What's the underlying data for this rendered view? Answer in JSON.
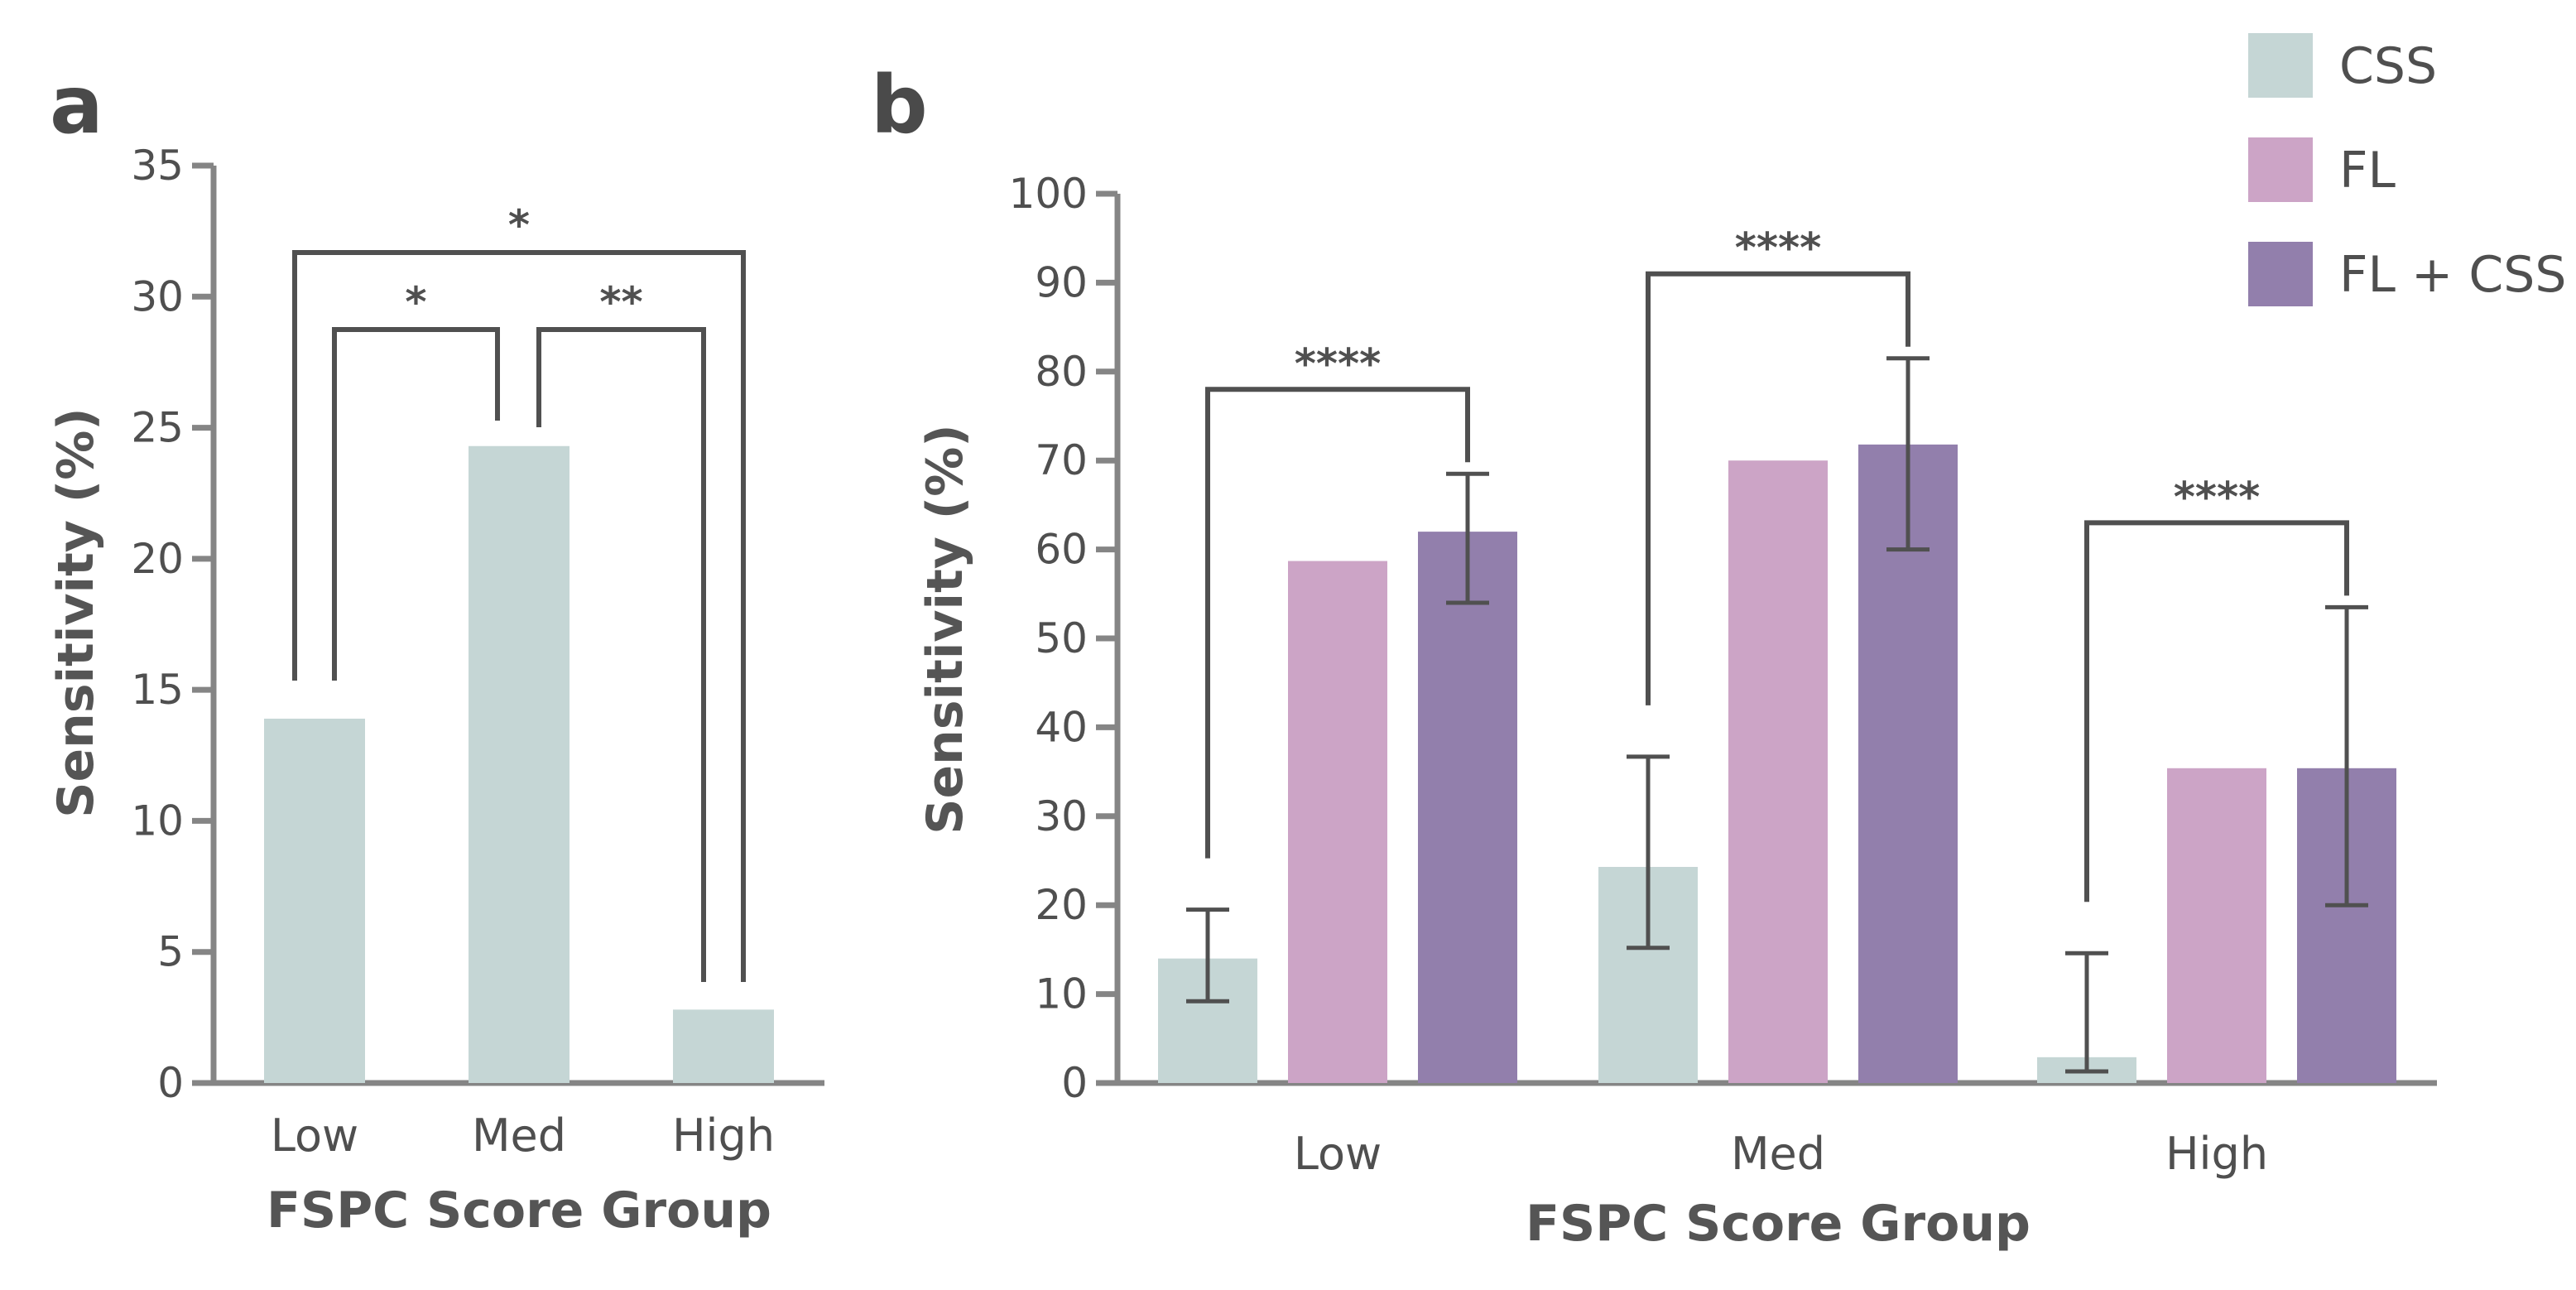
{
  "chart_data": [
    {
      "panel": "a",
      "type": "bar",
      "categories": [
        "Low",
        "Med",
        "High"
      ],
      "values": [
        13.9,
        24.3,
        2.8
      ],
      "color": "#c5d6d5",
      "xlabel": "FSPC Score Group",
      "ylabel": "Sensitivity (%)",
      "ylim": [
        0,
        35
      ],
      "yticks": [
        0,
        5,
        10,
        15,
        20,
        25,
        30,
        35
      ],
      "significance": [
        {
          "from": 0,
          "to": 1,
          "label": "*"
        },
        {
          "from": 1,
          "to": 2,
          "label": "**"
        },
        {
          "from": 0,
          "to": 2,
          "label": "*"
        }
      ]
    },
    {
      "panel": "b",
      "type": "bar",
      "categories": [
        "Low",
        "Med",
        "High"
      ],
      "series": [
        {
          "name": "CSS",
          "color": "#c5d6d5",
          "values": [
            14,
            24.3,
            2.9
          ],
          "err_low": [
            9.2,
            15.2,
            1.3
          ],
          "err_high": [
            19.5,
            36.7,
            14.6
          ]
        },
        {
          "name": "FL",
          "color": "#cca4c6",
          "values": [
            58.7,
            70,
            35.4
          ]
        },
        {
          "name": "FL + CSS",
          "color": "#927fac",
          "values": [
            62,
            71.8,
            35.4
          ],
          "err_low": [
            54,
            60,
            20
          ],
          "err_high": [
            68.5,
            81.5,
            53.5
          ]
        }
      ],
      "xlabel": "FSPC Score Group",
      "ylabel": "Sensitivity (%)",
      "ylim": [
        0,
        100
      ],
      "yticks": [
        0,
        10,
        20,
        30,
        40,
        50,
        60,
        70,
        80,
        90,
        100
      ],
      "significance": [
        {
          "category": 0,
          "label": "****"
        },
        {
          "category": 1,
          "label": "****"
        },
        {
          "category": 2,
          "label": "****"
        }
      ],
      "legend": {
        "position": "top-right"
      }
    }
  ],
  "panels": {
    "a": "a",
    "b": "b"
  }
}
